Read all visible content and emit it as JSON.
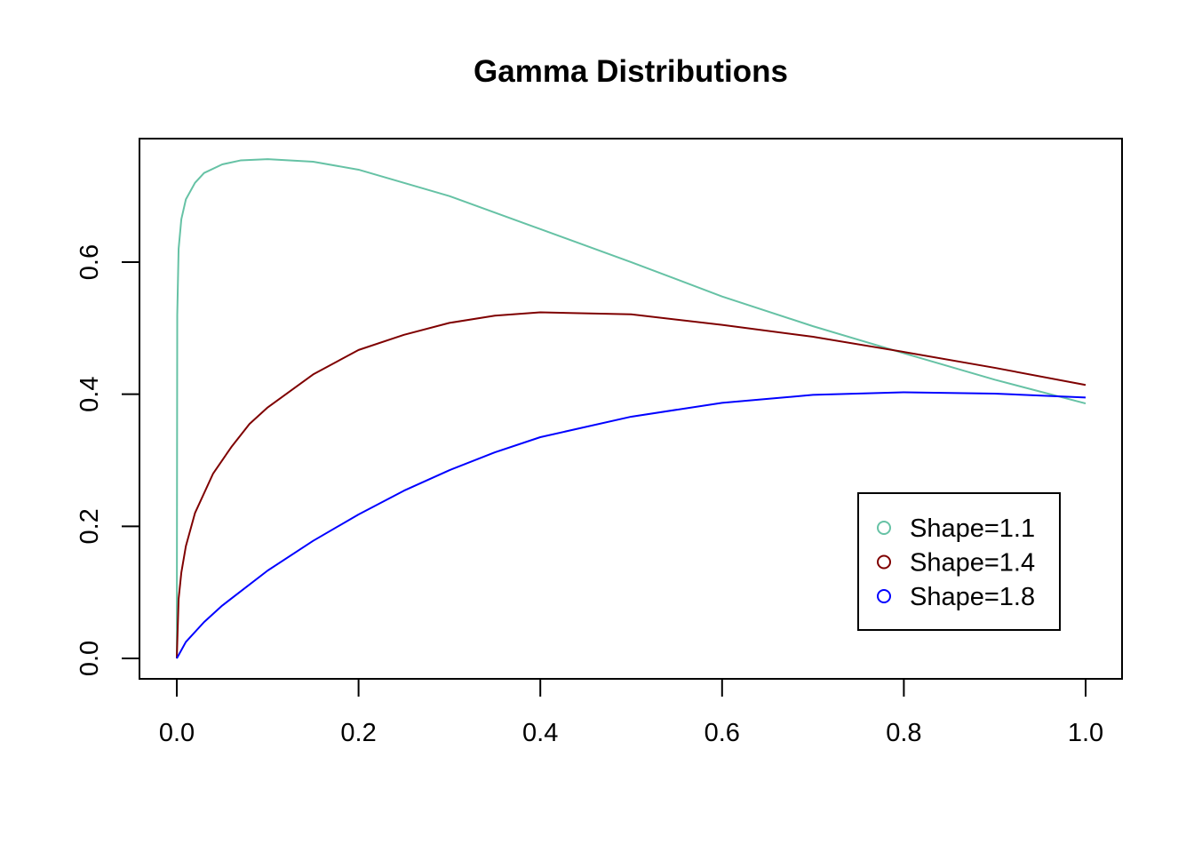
{
  "chart_data": {
    "type": "line",
    "title": "Gamma Distributions",
    "xlabel": "",
    "ylabel": "",
    "xlim": [
      0.0,
      1.0
    ],
    "ylim": [
      0.0,
      0.76
    ],
    "x_ticks": [
      "0.0",
      "0.2",
      "0.4",
      "0.6",
      "0.8",
      "1.0"
    ],
    "y_ticks": [
      "0.0",
      "0.2",
      "0.4",
      "0.6"
    ],
    "grid": false,
    "legend_position": "bottom-right",
    "series": [
      {
        "name": "Shape=1.1",
        "color": "#66c2a5",
        "points": [
          [
            0.0,
            0.0
          ],
          [
            0.0005,
            0.52
          ],
          [
            0.002,
            0.62
          ],
          [
            0.005,
            0.665
          ],
          [
            0.01,
            0.695
          ],
          [
            0.02,
            0.72
          ],
          [
            0.03,
            0.735
          ],
          [
            0.05,
            0.748
          ],
          [
            0.07,
            0.754
          ],
          [
            0.1,
            0.756
          ],
          [
            0.15,
            0.752
          ],
          [
            0.2,
            0.74
          ],
          [
            0.3,
            0.7
          ],
          [
            0.4,
            0.65
          ],
          [
            0.5,
            0.6
          ],
          [
            0.6,
            0.548
          ],
          [
            0.7,
            0.503
          ],
          [
            0.8,
            0.462
          ],
          [
            0.9,
            0.422
          ],
          [
            1.0,
            0.386
          ]
        ]
      },
      {
        "name": "Shape=1.4",
        "color": "#7f0000",
        "points": [
          [
            0.0,
            0.0
          ],
          [
            0.002,
            0.09
          ],
          [
            0.005,
            0.13
          ],
          [
            0.01,
            0.17
          ],
          [
            0.02,
            0.22
          ],
          [
            0.04,
            0.28
          ],
          [
            0.06,
            0.32
          ],
          [
            0.08,
            0.355
          ],
          [
            0.1,
            0.38
          ],
          [
            0.15,
            0.43
          ],
          [
            0.2,
            0.467
          ],
          [
            0.25,
            0.49
          ],
          [
            0.3,
            0.508
          ],
          [
            0.35,
            0.519
          ],
          [
            0.4,
            0.524
          ],
          [
            0.5,
            0.521
          ],
          [
            0.6,
            0.505
          ],
          [
            0.7,
            0.487
          ],
          [
            0.8,
            0.464
          ],
          [
            0.9,
            0.44
          ],
          [
            1.0,
            0.414
          ]
        ]
      },
      {
        "name": "Shape=1.8",
        "color": "#0000ff",
        "points": [
          [
            0.0,
            0.0
          ],
          [
            0.01,
            0.025
          ],
          [
            0.03,
            0.055
          ],
          [
            0.05,
            0.08
          ],
          [
            0.1,
            0.133
          ],
          [
            0.15,
            0.178
          ],
          [
            0.2,
            0.218
          ],
          [
            0.25,
            0.254
          ],
          [
            0.3,
            0.285
          ],
          [
            0.35,
            0.312
          ],
          [
            0.4,
            0.335
          ],
          [
            0.5,
            0.366
          ],
          [
            0.6,
            0.387
          ],
          [
            0.7,
            0.399
          ],
          [
            0.8,
            0.403
          ],
          [
            0.9,
            0.401
          ],
          [
            1.0,
            0.395
          ]
        ]
      }
    ]
  }
}
